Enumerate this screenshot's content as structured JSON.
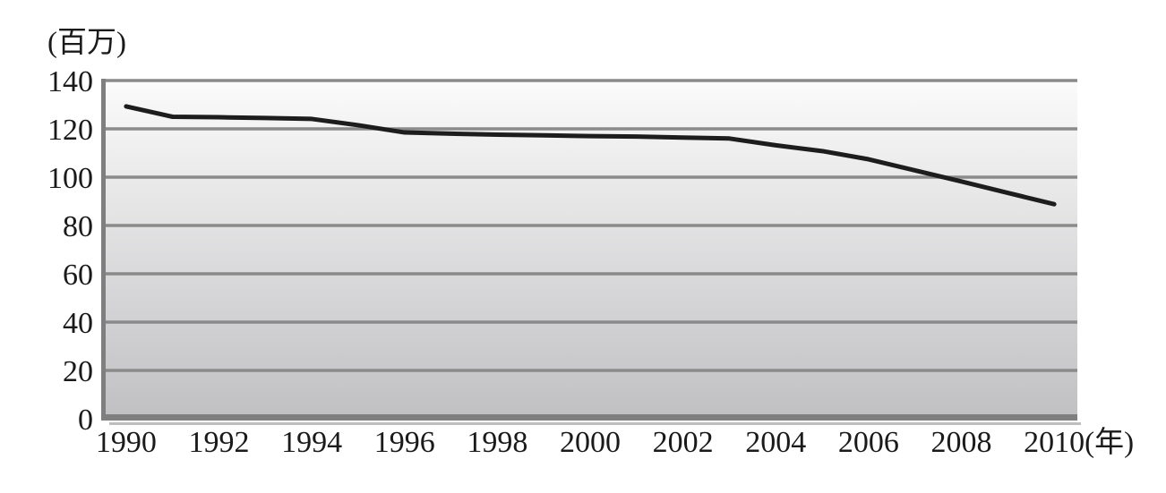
{
  "chart_data": {
    "type": "line",
    "title": "",
    "y_unit_label": "(百万)",
    "x_unit_label": "(年)",
    "categories": [
      1990,
      1991,
      1992,
      1993,
      1994,
      1995,
      1996,
      1997,
      1998,
      1999,
      2000,
      2001,
      2002,
      2003,
      2004,
      2005,
      2006,
      2007,
      2008,
      2009,
      2010
    ],
    "values": [
      129.3,
      125.0,
      124.8,
      124.5,
      124.1,
      121.5,
      118.5,
      118.0,
      117.6,
      117.3,
      117.0,
      116.8,
      116.4,
      116.0,
      113.2,
      110.8,
      107.4,
      102.8,
      98.2,
      93.5,
      88.8
    ],
    "x_tick_labels": [
      "1990",
      "1992",
      "1994",
      "1996",
      "1998",
      "2000",
      "2002",
      "2004",
      "2006",
      "2008",
      "2010"
    ],
    "y_ticks": [
      0,
      20,
      40,
      60,
      80,
      100,
      120,
      140
    ],
    "ylim": [
      0,
      140
    ],
    "grid": "horizontal",
    "legend": "none",
    "line_color": "#1d1d1d",
    "line_width": 5,
    "plot_gradient_top": "#fbfbfb",
    "plot_gradient_bottom": "#c0c0c3",
    "grid_color": "#8a8a8a",
    "axis_color": "#7f7f7f",
    "text_color": "#1a1a1a"
  }
}
